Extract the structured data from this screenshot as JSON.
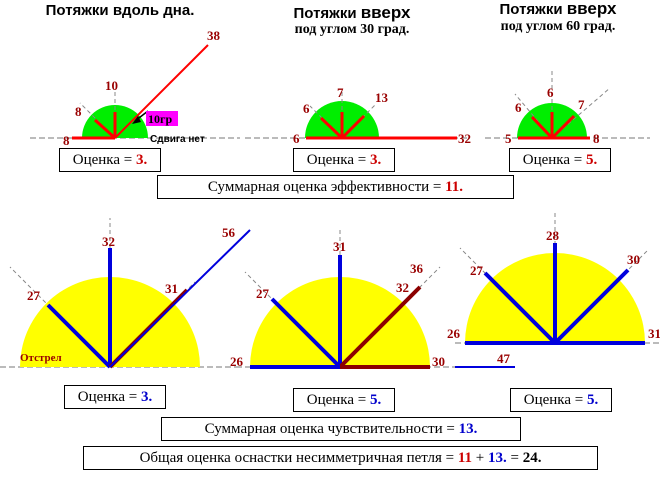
{
  "top": {
    "titles": [
      {
        "line1": "Потяжки вдоль дна.",
        "line2": ""
      },
      {
        "line1_a": "Потяжки ",
        "line1_b": "вверх",
        "line2": "под углом 30 град."
      },
      {
        "line1_a": "Потяжки ",
        "line1_b": "вверх",
        "line2": "под углом 60 град."
      }
    ],
    "diagram1": {
      "labels": [
        "10",
        "8",
        "8",
        "38"
      ],
      "badge": "10гр",
      "note": "Сдвига нет"
    },
    "diagram2": {
      "labels": [
        "7",
        "6",
        "13",
        "6",
        "32"
      ]
    },
    "diagram3": {
      "labels": [
        "6",
        "6",
        "7",
        "5",
        "8"
      ]
    },
    "scores": [
      {
        "text": "Оценка = ",
        "value": "3."
      },
      {
        "text": "Оценка = ",
        "value": "3."
      },
      {
        "text": "Оценка = ",
        "value": "5."
      }
    ],
    "summary": {
      "text": "Суммарная оценка эффективности = ",
      "value": "11."
    }
  },
  "bottom": {
    "diagram1": {
      "labels": [
        "32",
        "27",
        "31",
        "56"
      ],
      "note": "Отстрел"
    },
    "diagram2": {
      "labels": [
        "31",
        "27",
        "36",
        "32",
        "26",
        "30"
      ]
    },
    "diagram3": {
      "labels": [
        "28",
        "27",
        "30",
        "26",
        "31",
        "47"
      ]
    },
    "scores": [
      {
        "text": "Оценка = ",
        "value": "3."
      },
      {
        "text": "Оценка = ",
        "value": "5."
      },
      {
        "text": "Оценка = ",
        "value": "5."
      }
    ],
    "summary": {
      "text": "Суммарная оценка чувствительности = ",
      "value": "13."
    },
    "total": {
      "text": "Общая оценка оснастки несимметричная петля = ",
      "a": "11",
      "plus": " + ",
      "b": "13.",
      "eq": " = ",
      "result": "24."
    }
  },
  "colors": {
    "green": "#00ee00",
    "yellow": "#ffff00",
    "red": "#ff0000",
    "darkred": "#8b0000",
    "blue": "#0000dd",
    "magenta": "#ff00ff",
    "labelred": "#990000"
  }
}
